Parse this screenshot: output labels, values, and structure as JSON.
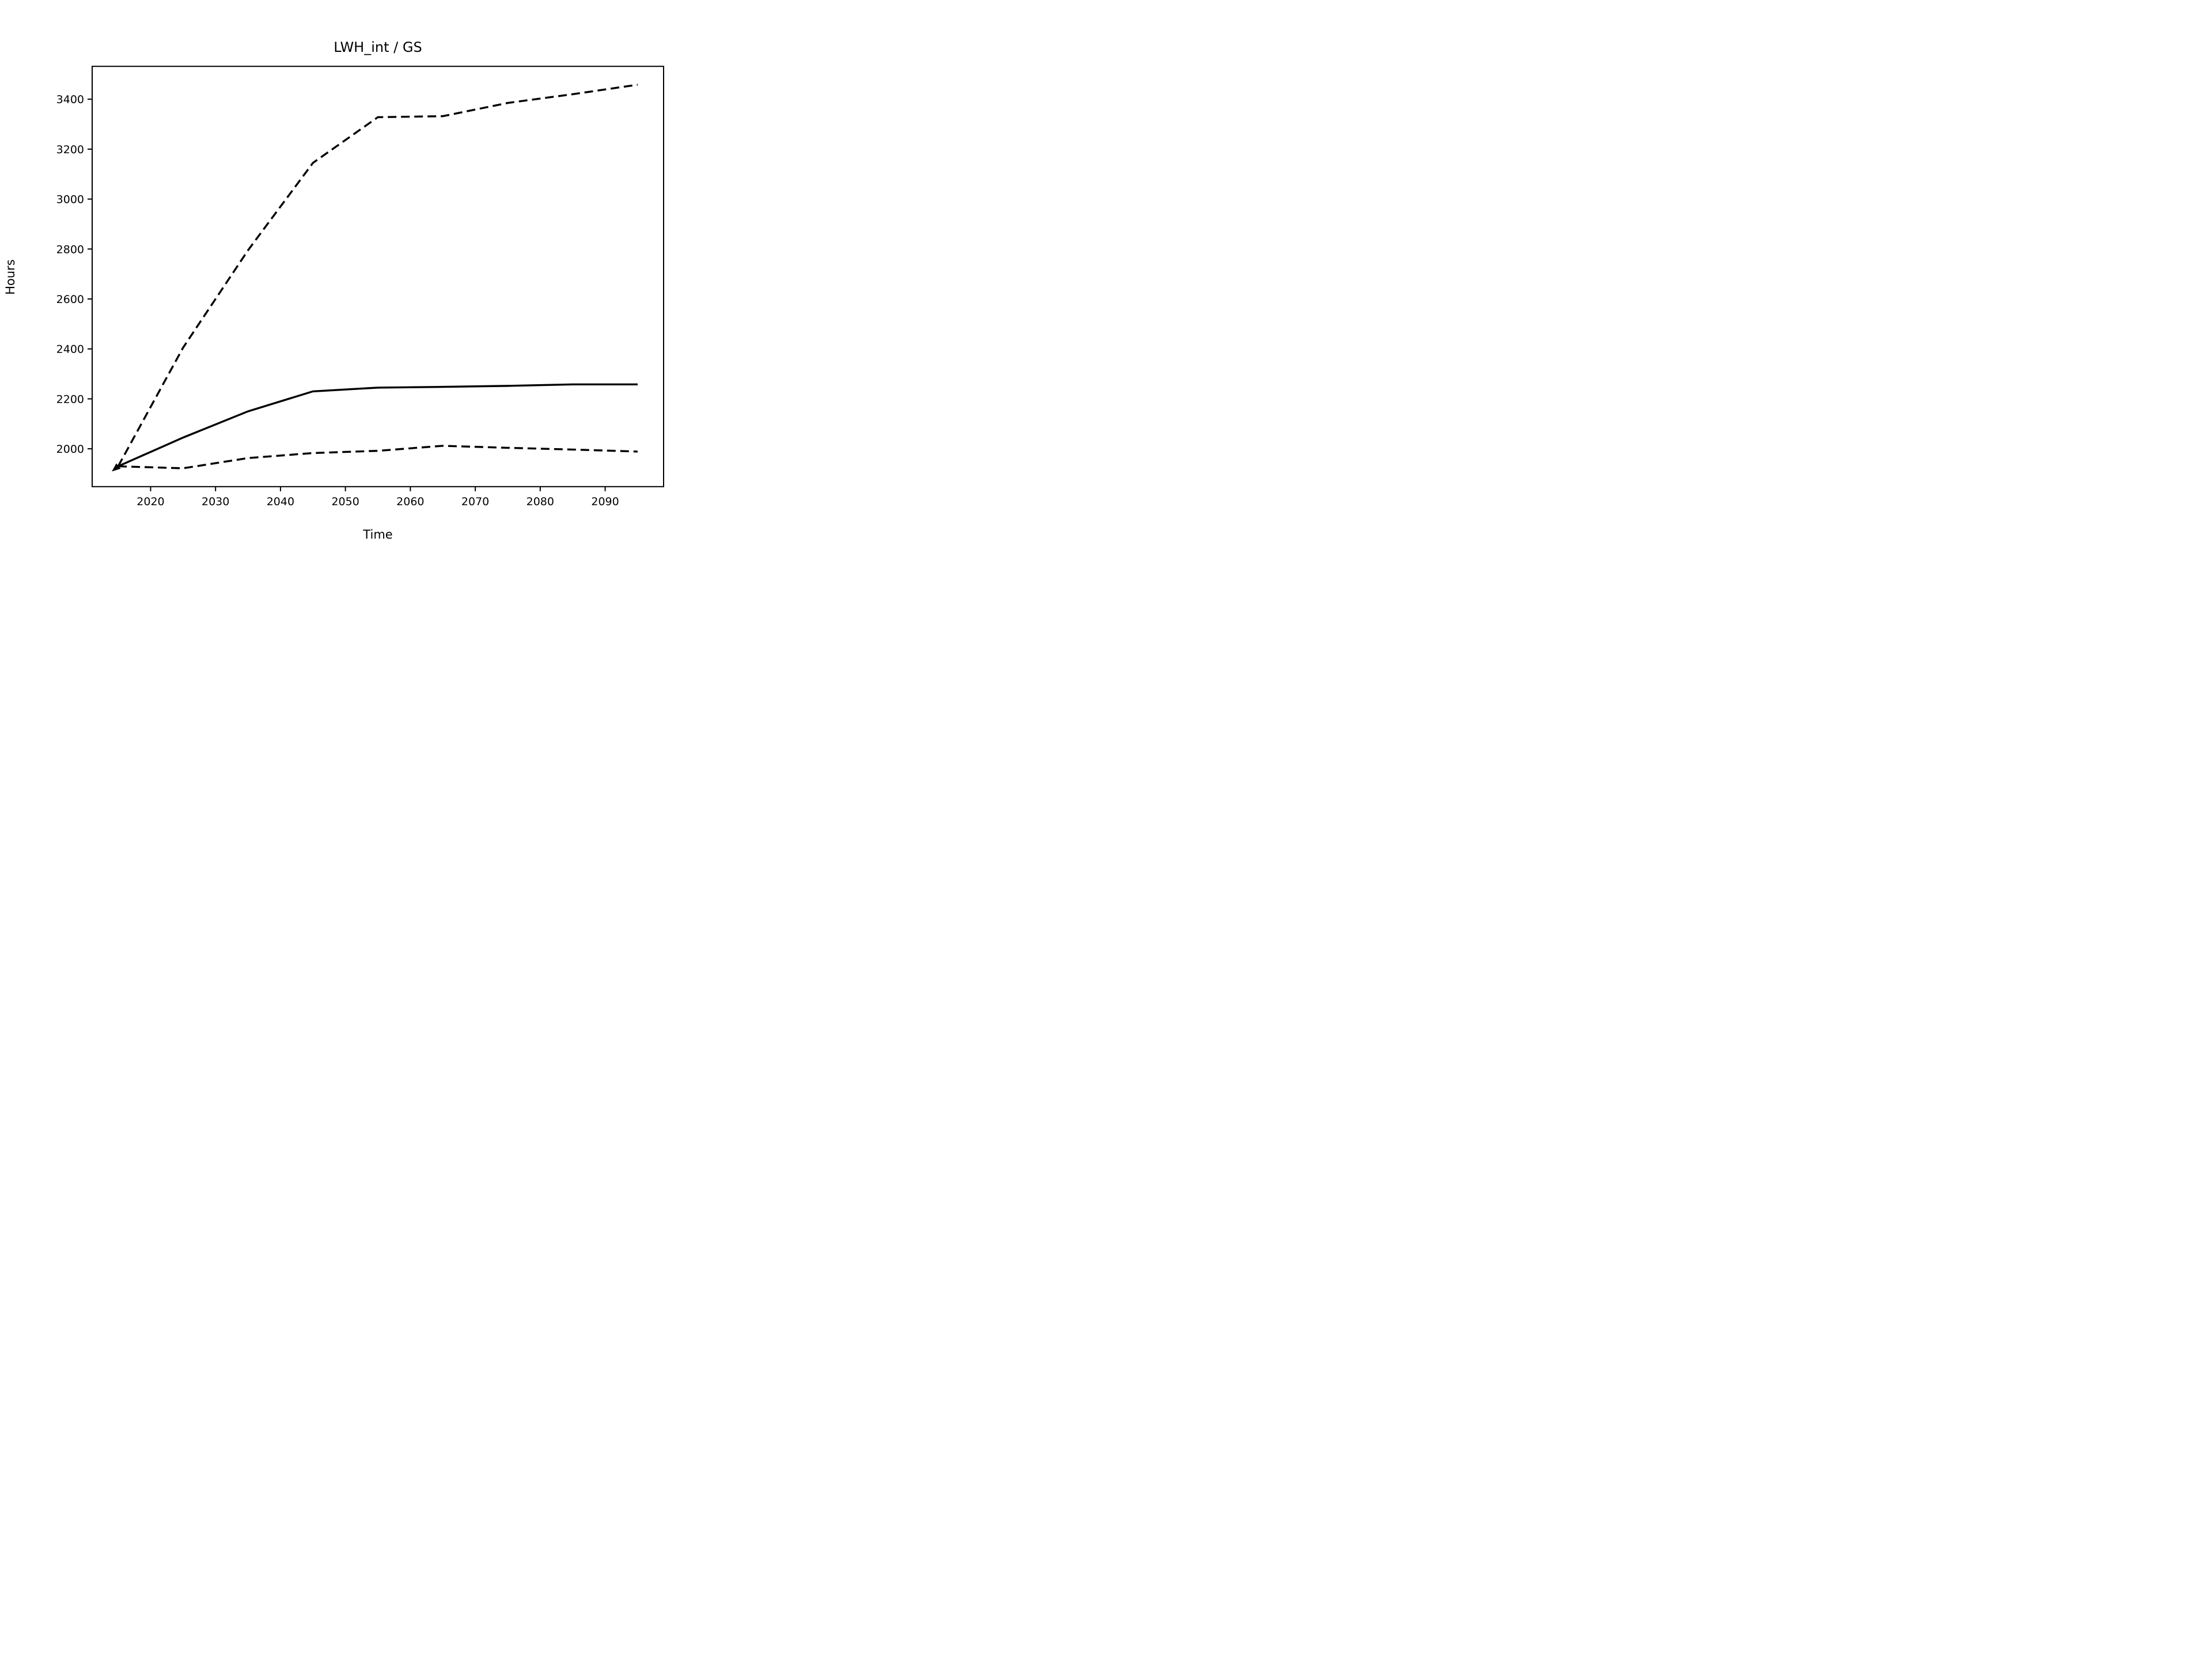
{
  "figure": {
    "background": "#ffffff",
    "line_color": "#000000"
  },
  "chart_data": {
    "type": "line",
    "title": "LWH_int / GS",
    "xlabel": "Time",
    "ylabel": "Hours",
    "grid": false,
    "legend": "none",
    "xlim": [
      2011,
      2099
    ],
    "ylim": [
      1848.5,
      3531.5
    ],
    "xticks": [
      2020,
      2030,
      2040,
      2050,
      2060,
      2070,
      2080,
      2090
    ],
    "yticks": [
      2000,
      2200,
      2400,
      2600,
      2800,
      3000,
      3200,
      3400
    ],
    "x": [
      2015,
      2025,
      2035,
      2045,
      2055,
      2065,
      2075,
      2085,
      2095
    ],
    "series": [
      {
        "name": "upper-bound-dashed",
        "style": "dashed",
        "values": [
          1930,
          2405,
          2795,
          3145,
          3328,
          3332,
          3385,
          3420,
          3458
        ]
      },
      {
        "name": "central-solid",
        "style": "solid",
        "values": [
          1930,
          2045,
          2150,
          2230,
          2245,
          2248,
          2252,
          2258,
          2258
        ]
      },
      {
        "name": "lower-bound-dashed",
        "style": "dashed",
        "values": [
          1930,
          1922,
          1963,
          1983,
          1992,
          2012,
          2004,
          1997,
          1989
        ]
      }
    ],
    "annotation_arrow": {
      "x": 2015,
      "y": 1930,
      "direction": "down-left"
    }
  }
}
